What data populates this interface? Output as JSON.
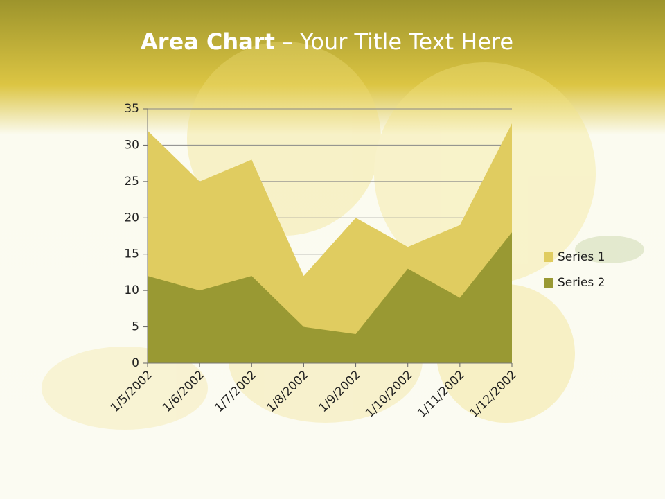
{
  "chart_data": {
    "type": "area",
    "title": [
      "Area Chart",
      "– Your Title Text Here"
    ],
    "categories": [
      "1/5/2002",
      "1/6/2002",
      "1/7/2002",
      "1/8/2002",
      "1/9/2002",
      "1/10/2002",
      "1/11/2002",
      "1/12/2002"
    ],
    "series": [
      {
        "name": "Series 1",
        "color": "#e0cc60",
        "values": [
          32,
          25,
          28,
          12,
          20,
          16,
          19,
          33
        ]
      },
      {
        "name": "Series 2",
        "color": "#999933",
        "values": [
          12,
          10,
          12,
          5,
          4,
          13,
          9,
          18
        ]
      }
    ],
    "ylim": [
      0,
      35
    ],
    "yticks": [
      0,
      5,
      10,
      15,
      20,
      25,
      30,
      35
    ],
    "grid": true,
    "legend": "right"
  }
}
